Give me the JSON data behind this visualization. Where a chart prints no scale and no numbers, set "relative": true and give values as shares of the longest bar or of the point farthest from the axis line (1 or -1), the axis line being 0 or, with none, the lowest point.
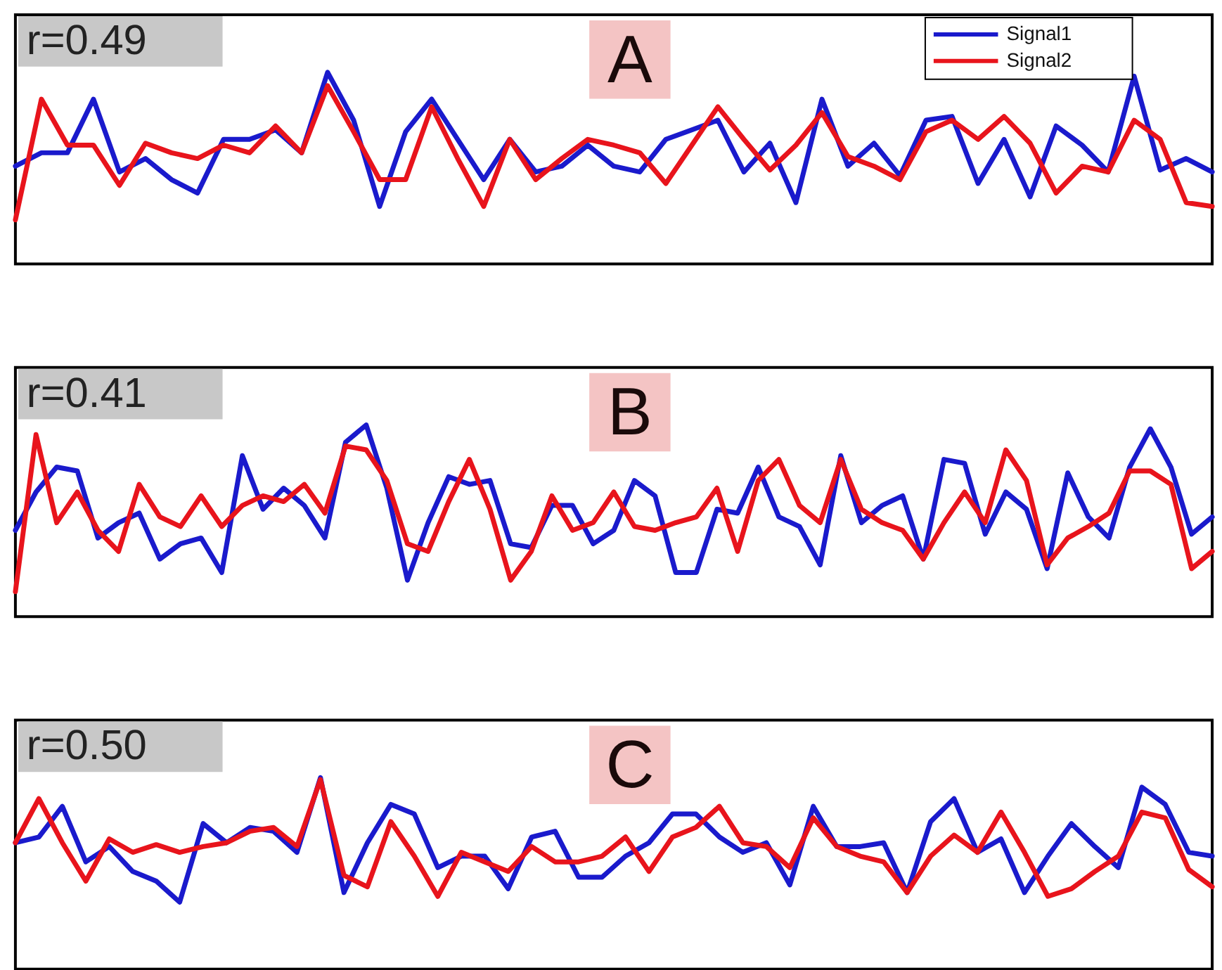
{
  "chart_data": [
    {
      "type": "line",
      "relative": true,
      "title": "A",
      "annotations": [
        "r=0.49"
      ],
      "legend": "top right",
      "line_style": "solid",
      "categories": [
        null,
        null,
        null,
        null,
        null,
        null,
        null,
        null,
        null,
        null,
        null,
        null,
        null,
        null,
        null,
        null,
        null,
        null,
        null,
        null,
        null,
        null,
        null,
        null,
        null,
        null,
        null,
        null,
        null,
        null,
        null,
        null,
        null,
        null,
        null,
        null,
        null,
        null,
        null,
        null,
        null,
        null,
        null,
        null,
        null,
        null,
        null
      ],
      "series": [
        {
          "name": "Signal1",
          "color": "#1a1acc",
          "values": [
            0.51,
            0.58,
            0.58,
            0.86,
            0.48,
            0.55,
            0.44,
            0.37,
            0.65,
            0.65,
            0.7,
            0.58,
            1.0,
            0.75,
            0.3,
            0.69,
            0.86,
            0.65,
            0.44,
            0.65,
            0.48,
            0.51,
            0.62,
            0.51,
            0.48,
            0.65,
            0.7,
            0.75,
            0.48,
            0.63,
            0.32,
            0.86,
            0.51,
            0.63,
            0.46,
            0.75,
            0.77,
            0.42,
            0.65,
            0.35,
            0.72,
            0.62,
            0.48,
            0.98,
            0.49,
            0.55,
            0.48
          ]
        },
        {
          "name": "Signal2",
          "color": "#e8141c",
          "values": [
            0.23,
            0.86,
            0.62,
            0.62,
            0.41,
            0.63,
            0.58,
            0.55,
            0.62,
            0.58,
            0.72,
            0.58,
            0.93,
            0.69,
            0.44,
            0.44,
            0.82,
            0.55,
            0.3,
            0.65,
            0.44,
            0.55,
            0.65,
            0.62,
            0.58,
            0.42,
            0.62,
            0.82,
            0.65,
            0.49,
            0.62,
            0.79,
            0.56,
            0.51,
            0.44,
            0.69,
            0.75,
            0.65,
            0.77,
            0.63,
            0.37,
            0.51,
            0.48,
            0.75,
            0.65,
            0.32,
            0.3
          ]
        }
      ]
    },
    {
      "type": "line",
      "relative": true,
      "title": "B",
      "annotations": [
        "r=0.41"
      ],
      "line_style": "solid",
      "categories": [
        null,
        null,
        null,
        null,
        null,
        null,
        null,
        null,
        null,
        null,
        null,
        null,
        null,
        null,
        null,
        null,
        null,
        null,
        null,
        null,
        null,
        null,
        null,
        null,
        null,
        null,
        null,
        null,
        null,
        null,
        null,
        null,
        null,
        null,
        null,
        null,
        null,
        null,
        null,
        null,
        null,
        null,
        null,
        null,
        null,
        null,
        null,
        null,
        null,
        null,
        null,
        null,
        null,
        null,
        null,
        null,
        null,
        null,
        null
      ],
      "series": [
        {
          "color": "#1a1acc",
          "values": [
            0.45,
            0.65,
            0.78,
            0.76,
            0.41,
            0.49,
            0.54,
            0.3,
            0.38,
            0.41,
            0.23,
            0.84,
            0.56,
            0.67,
            0.58,
            0.41,
            0.91,
            1.0,
            0.67,
            0.19,
            0.49,
            0.73,
            0.69,
            0.71,
            0.38,
            0.36,
            0.58,
            0.58,
            0.38,
            0.45,
            0.71,
            0.63,
            0.23,
            0.23,
            0.56,
            0.54,
            0.78,
            0.52,
            0.47,
            0.27,
            0.84,
            0.49,
            0.58,
            0.63,
            0.3,
            0.82,
            0.8,
            0.43,
            0.65,
            0.56,
            0.25,
            0.75,
            0.52,
            0.41,
            0.78,
            0.98,
            0.78,
            0.43,
            0.52
          ]
        },
        {
          "color": "#e8141c",
          "values": [
            0.13,
            0.95,
            0.49,
            0.65,
            0.45,
            0.34,
            0.69,
            0.52,
            0.47,
            0.63,
            0.47,
            0.58,
            0.63,
            0.6,
            0.69,
            0.54,
            0.89,
            0.87,
            0.71,
            0.38,
            0.34,
            0.6,
            0.82,
            0.56,
            0.19,
            0.34,
            0.63,
            0.45,
            0.49,
            0.65,
            0.47,
            0.45,
            0.49,
            0.52,
            0.67,
            0.34,
            0.71,
            0.82,
            0.58,
            0.49,
            0.82,
            0.56,
            0.49,
            0.45,
            0.3,
            0.49,
            0.65,
            0.49,
            0.87,
            0.71,
            0.27,
            0.41,
            0.47,
            0.54,
            0.76,
            0.76,
            0.69,
            0.25,
            0.34
          ]
        }
      ]
    },
    {
      "type": "line",
      "relative": true,
      "title": "C",
      "annotations": [
        "r=0.50"
      ],
      "line_style": "solid",
      "categories": [
        null,
        null,
        null,
        null,
        null,
        null,
        null,
        null,
        null,
        null,
        null,
        null,
        null,
        null,
        null,
        null,
        null,
        null,
        null,
        null,
        null,
        null,
        null,
        null,
        null,
        null,
        null,
        null,
        null,
        null,
        null,
        null,
        null,
        null,
        null,
        null,
        null,
        null,
        null,
        null,
        null,
        null,
        null,
        null,
        null,
        null,
        null,
        null,
        null,
        null,
        null,
        null
      ],
      "series": [
        {
          "color": "#1a1acc",
          "values": [
            0.66,
            0.69,
            0.85,
            0.56,
            0.64,
            0.51,
            0.46,
            0.35,
            0.76,
            0.66,
            0.74,
            0.72,
            0.61,
            1.0,
            0.4,
            0.66,
            0.86,
            0.81,
            0.53,
            0.59,
            0.59,
            0.42,
            0.69,
            0.72,
            0.48,
            0.48,
            0.59,
            0.66,
            0.81,
            0.81,
            0.69,
            0.61,
            0.66,
            0.44,
            0.85,
            0.64,
            0.64,
            0.66,
            0.4,
            0.77,
            0.89,
            0.61,
            0.68,
            0.4,
            0.59,
            0.76,
            0.64,
            0.53,
            0.95,
            0.86,
            0.61,
            0.59
          ]
        },
        {
          "color": "#e8141c",
          "values": [
            0.66,
            0.89,
            0.66,
            0.46,
            0.68,
            0.61,
            0.65,
            0.61,
            0.64,
            0.66,
            0.72,
            0.74,
            0.64,
            0.99,
            0.49,
            0.43,
            0.77,
            0.59,
            0.38,
            0.61,
            0.56,
            0.51,
            0.64,
            0.56,
            0.56,
            0.59,
            0.69,
            0.51,
            0.69,
            0.74,
            0.85,
            0.66,
            0.64,
            0.53,
            0.79,
            0.64,
            0.59,
            0.56,
            0.4,
            0.59,
            0.7,
            0.61,
            0.82,
            0.61,
            0.38,
            0.42,
            0.51,
            0.59,
            0.82,
            0.79,
            0.52,
            0.43
          ]
        }
      ]
    }
  ]
}
